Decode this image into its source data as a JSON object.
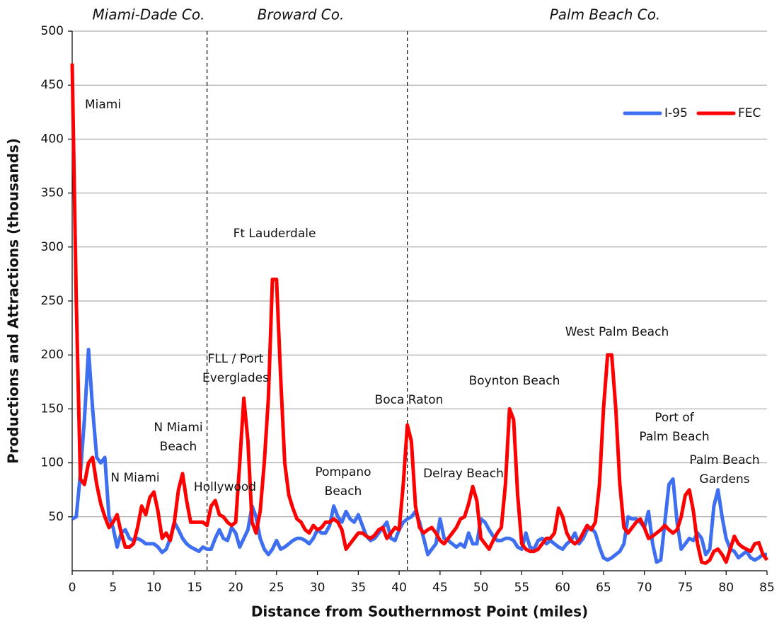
{
  "chart_data": {
    "type": "line",
    "x_label": "Distance from Southernmost Point (miles)",
    "y_label": "Productions and Attractions (thousands)",
    "region_labels": [
      "Miami-Dade Co.",
      "Broward Co.",
      "Palm Beach Co."
    ],
    "dividers": [
      16.5,
      41
    ],
    "annotations": [
      [
        "Miami"
      ],
      [
        "Ft Lauderdale"
      ],
      [
        "FLL / Port",
        "Everglades"
      ],
      [
        "N Miami",
        "Beach"
      ],
      [
        "N Miami"
      ],
      [
        "Hollywood"
      ],
      [
        "Pompano",
        "Beach"
      ],
      [
        "Boca Raton"
      ],
      [
        "Delray Beach"
      ],
      [
        "Boynton Beach"
      ],
      [
        "West Palm Beach"
      ],
      [
        "Port of",
        "Palm Beach"
      ],
      [
        "Palm Beach",
        "Gardens"
      ]
    ],
    "xlim": [
      0,
      85
    ],
    "xticks": [
      0,
      5,
      10,
      15,
      20,
      25,
      30,
      35,
      40,
      45,
      50,
      55,
      60,
      65,
      70,
      75,
      80,
      85
    ],
    "ylim": [
      0,
      500
    ],
    "yticks": [
      50,
      100,
      150,
      200,
      250,
      300,
      350,
      400,
      450,
      500
    ],
    "grid": true,
    "legend": "upper right",
    "x": [
      0,
      0.5,
      1,
      1.5,
      2,
      2.5,
      3,
      3.5,
      4,
      4.5,
      5,
      5.5,
      6,
      6.5,
      7,
      7.5,
      8,
      8.5,
      9,
      9.5,
      10,
      10.5,
      11,
      11.5,
      12,
      12.5,
      13,
      13.5,
      14,
      14.5,
      15,
      15.5,
      16,
      16.5,
      17,
      17.5,
      18,
      18.5,
      19,
      19.5,
      20,
      20.5,
      21,
      21.5,
      22,
      22.5,
      23,
      23.5,
      24,
      24.5,
      25,
      25.5,
      26,
      26.5,
      27,
      27.5,
      28,
      28.5,
      29,
      29.5,
      30,
      30.5,
      31,
      31.5,
      32,
      32.5,
      33,
      33.5,
      34,
      34.5,
      35,
      35.5,
      36,
      36.5,
      37,
      37.5,
      38,
      38.5,
      39,
      39.5,
      40,
      40.5,
      41,
      41.5,
      42,
      42.5,
      43,
      43.5,
      44,
      44.5,
      45,
      45.5,
      46,
      46.5,
      47,
      47.5,
      48,
      48.5,
      49,
      49.5,
      50,
      50.5,
      51,
      51.5,
      52,
      52.5,
      53,
      53.5,
      54,
      54.5,
      55,
      55.5,
      56,
      56.5,
      57,
      57.5,
      58,
      58.5,
      59,
      59.5,
      60,
      60.5,
      61,
      61.5,
      62,
      62.5,
      63,
      63.5,
      64,
      64.5,
      65,
      65.5,
      66,
      66.5,
      67,
      67.5,
      68,
      68.5,
      69,
      69.5,
      70,
      70.5,
      71,
      71.5,
      72,
      72.5,
      73,
      73.5,
      74,
      74.5,
      75,
      75.5,
      76,
      76.5,
      77,
      77.5,
      78,
      78.5,
      79,
      79.5,
      80,
      80.5,
      81,
      81.5,
      82,
      82.5,
      83,
      83.5,
      84,
      84.5,
      85
    ],
    "series": [
      {
        "name": "I-95",
        "color": "#3d6ff0",
        "values": [
          48,
          50,
          90,
          140,
          205,
          150,
          105,
          100,
          105,
          50,
          40,
          22,
          35,
          38,
          30,
          28,
          30,
          28,
          25,
          25,
          25,
          22,
          17,
          20,
          30,
          45,
          38,
          30,
          25,
          22,
          20,
          18,
          22,
          20,
          20,
          30,
          38,
          30,
          28,
          40,
          35,
          22,
          30,
          38,
          60,
          50,
          30,
          20,
          15,
          20,
          28,
          20,
          22,
          25,
          28,
          30,
          30,
          28,
          25,
          30,
          38,
          35,
          35,
          42,
          60,
          50,
          45,
          55,
          48,
          45,
          52,
          42,
          32,
          28,
          30,
          35,
          40,
          45,
          30,
          28,
          38,
          45,
          48,
          50,
          55,
          45,
          30,
          15,
          20,
          25,
          48,
          30,
          28,
          25,
          22,
          25,
          22,
          35,
          25,
          25,
          48,
          45,
          38,
          32,
          28,
          28,
          30,
          30,
          28,
          22,
          20,
          35,
          22,
          20,
          28,
          30,
          25,
          28,
          25,
          22,
          20,
          25,
          28,
          35,
          25,
          30,
          38,
          40,
          35,
          22,
          12,
          10,
          12,
          15,
          18,
          25,
          50,
          48,
          48,
          45,
          40,
          55,
          25,
          8,
          10,
          45,
          80,
          85,
          45,
          20,
          25,
          30,
          28,
          35,
          30,
          15,
          20,
          60,
          75,
          50,
          30,
          20,
          18,
          12,
          15,
          18,
          12,
          10,
          12,
          15,
          15
        ]
      },
      {
        "name": "FEC",
        "color": "#ff0000",
        "values": [
          470,
          250,
          85,
          80,
          100,
          105,
          80,
          62,
          50,
          40,
          45,
          52,
          35,
          22,
          22,
          25,
          40,
          60,
          52,
          68,
          73,
          55,
          30,
          35,
          28,
          45,
          75,
          90,
          65,
          45,
          45,
          45,
          45,
          42,
          60,
          65,
          52,
          50,
          45,
          42,
          45,
          100,
          160,
          120,
          45,
          35,
          55,
          100,
          160,
          270,
          270,
          180,
          100,
          70,
          58,
          48,
          45,
          38,
          35,
          42,
          38,
          40,
          45,
          45,
          48,
          45,
          38,
          20,
          25,
          30,
          35,
          35,
          32,
          30,
          33,
          38,
          40,
          30,
          35,
          40,
          38,
          80,
          135,
          120,
          60,
          40,
          35,
          38,
          40,
          35,
          28,
          25,
          30,
          35,
          40,
          48,
          50,
          62,
          78,
          65,
          30,
          25,
          20,
          28,
          35,
          40,
          80,
          150,
          140,
          70,
          25,
          20,
          18,
          18,
          20,
          25,
          30,
          30,
          35,
          58,
          50,
          35,
          28,
          25,
          28,
          35,
          42,
          38,
          45,
          80,
          150,
          200,
          200,
          150,
          80,
          40,
          35,
          40,
          45,
          48,
          40,
          30,
          32,
          35,
          38,
          42,
          38,
          35,
          38,
          50,
          70,
          75,
          55,
          25,
          8,
          7,
          10,
          18,
          20,
          15,
          8,
          20,
          32,
          25,
          22,
          20,
          18,
          25,
          26,
          15,
          10
        ]
      }
    ]
  }
}
